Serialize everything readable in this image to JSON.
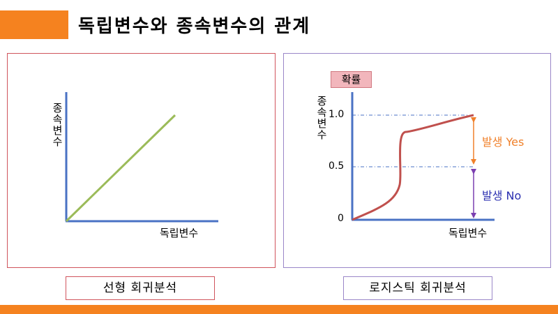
{
  "title": "독립변수와 종속변수의 관계",
  "linear": {
    "xlabel": "독립변수",
    "ylabel": "종속변수",
    "caption": "선형 회귀분석",
    "line_color": "#9bbb59"
  },
  "logistic": {
    "xlabel": "독립변수",
    "ylabel": "종속변수",
    "prob_label": "확률",
    "y_ticks": [
      "1.0",
      "0.5",
      "0"
    ],
    "yes_label": "발생 Yes",
    "no_label": "발생 No",
    "caption": "로지스틱 회귀분석",
    "curve_color": "#c0504d",
    "yes_color": "#f0802a",
    "no_color": "#2b2fb0"
  },
  "colors": {
    "accent": "#f5821f",
    "axis": "#4a72c4",
    "left_border": "#d0545c",
    "right_border": "#9a86c8"
  }
}
